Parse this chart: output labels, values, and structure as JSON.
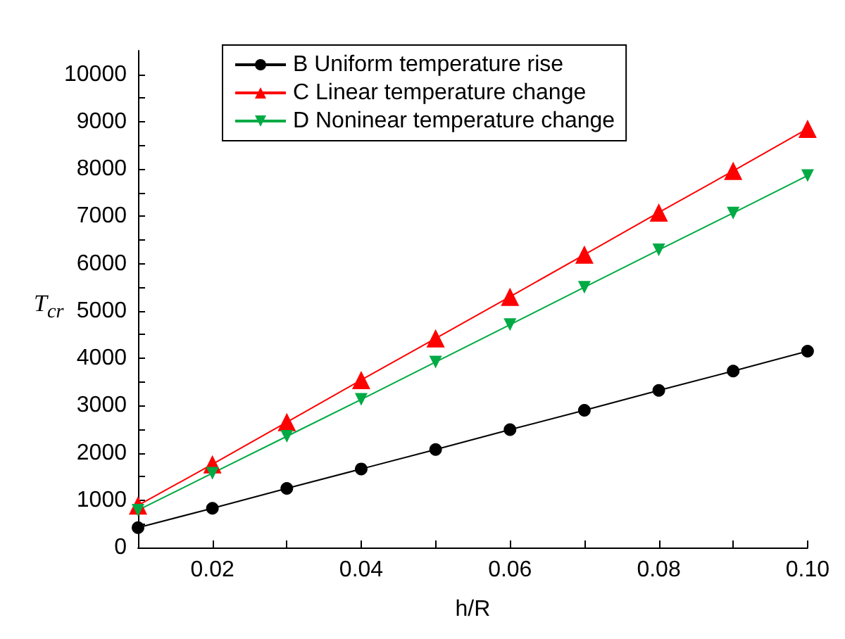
{
  "chart_data": {
    "type": "line",
    "xlabel": "h/R",
    "ylabel": "T$_{cr}$",
    "x": [
      0.01,
      0.02,
      0.03,
      0.04,
      0.05,
      0.06,
      0.07,
      0.08,
      0.09,
      0.1
    ],
    "series": [
      {
        "name": "B Uniform temperature rise",
        "color": "#000000",
        "marker": "circle",
        "values": [
          420,
          830,
          1250,
          1660,
          2070,
          2490,
          2900,
          3320,
          3730,
          4150
        ]
      },
      {
        "name": "C Linear temperature change",
        "color": "#ff0000",
        "marker": "triangle",
        "values": [
          890,
          1760,
          2650,
          3540,
          4420,
          5300,
          6190,
          7080,
          7960,
          8850
        ]
      },
      {
        "name": "D Noninear temperature change",
        "color": "#00aa44",
        "marker": "triangle-down",
        "values": [
          790,
          1570,
          2350,
          3130,
          3920,
          4710,
          5500,
          6290,
          7070,
          7860
        ]
      }
    ],
    "xlim": [
      0.01,
      0.1
    ],
    "xticks": [
      {
        "value": 0.01,
        "label": null
      },
      0.02,
      {
        "value": 0.03,
        "label": null
      },
      0.04,
      {
        "value": 0.05,
        "label": null
      },
      0.06,
      {
        "value": 0.07,
        "label": null
      },
      0.08,
      {
        "value": 0.09,
        "label": null
      },
      {
        "value": 0.1,
        "label": "0.10"
      }
    ],
    "ylim": [
      0,
      10500
    ],
    "yticks": [
      0,
      {
        "value": 500,
        "label": null
      },
      1000,
      {
        "value": 1500,
        "label": null
      },
      2000,
      {
        "value": 2500,
        "label": null
      },
      3000,
      {
        "value": 3500,
        "label": null
      },
      4000,
      {
        "value": 4500,
        "label": null
      },
      5000,
      {
        "value": 5500,
        "label": null
      },
      6000,
      {
        "value": 6500,
        "label": null
      },
      7000,
      {
        "value": 7500,
        "label": null
      },
      8000,
      {
        "value": 8500,
        "label": null
      },
      9000,
      {
        "value": 9500,
        "label": null
      },
      10000
    ],
    "grid": false,
    "legend": "top left"
  }
}
